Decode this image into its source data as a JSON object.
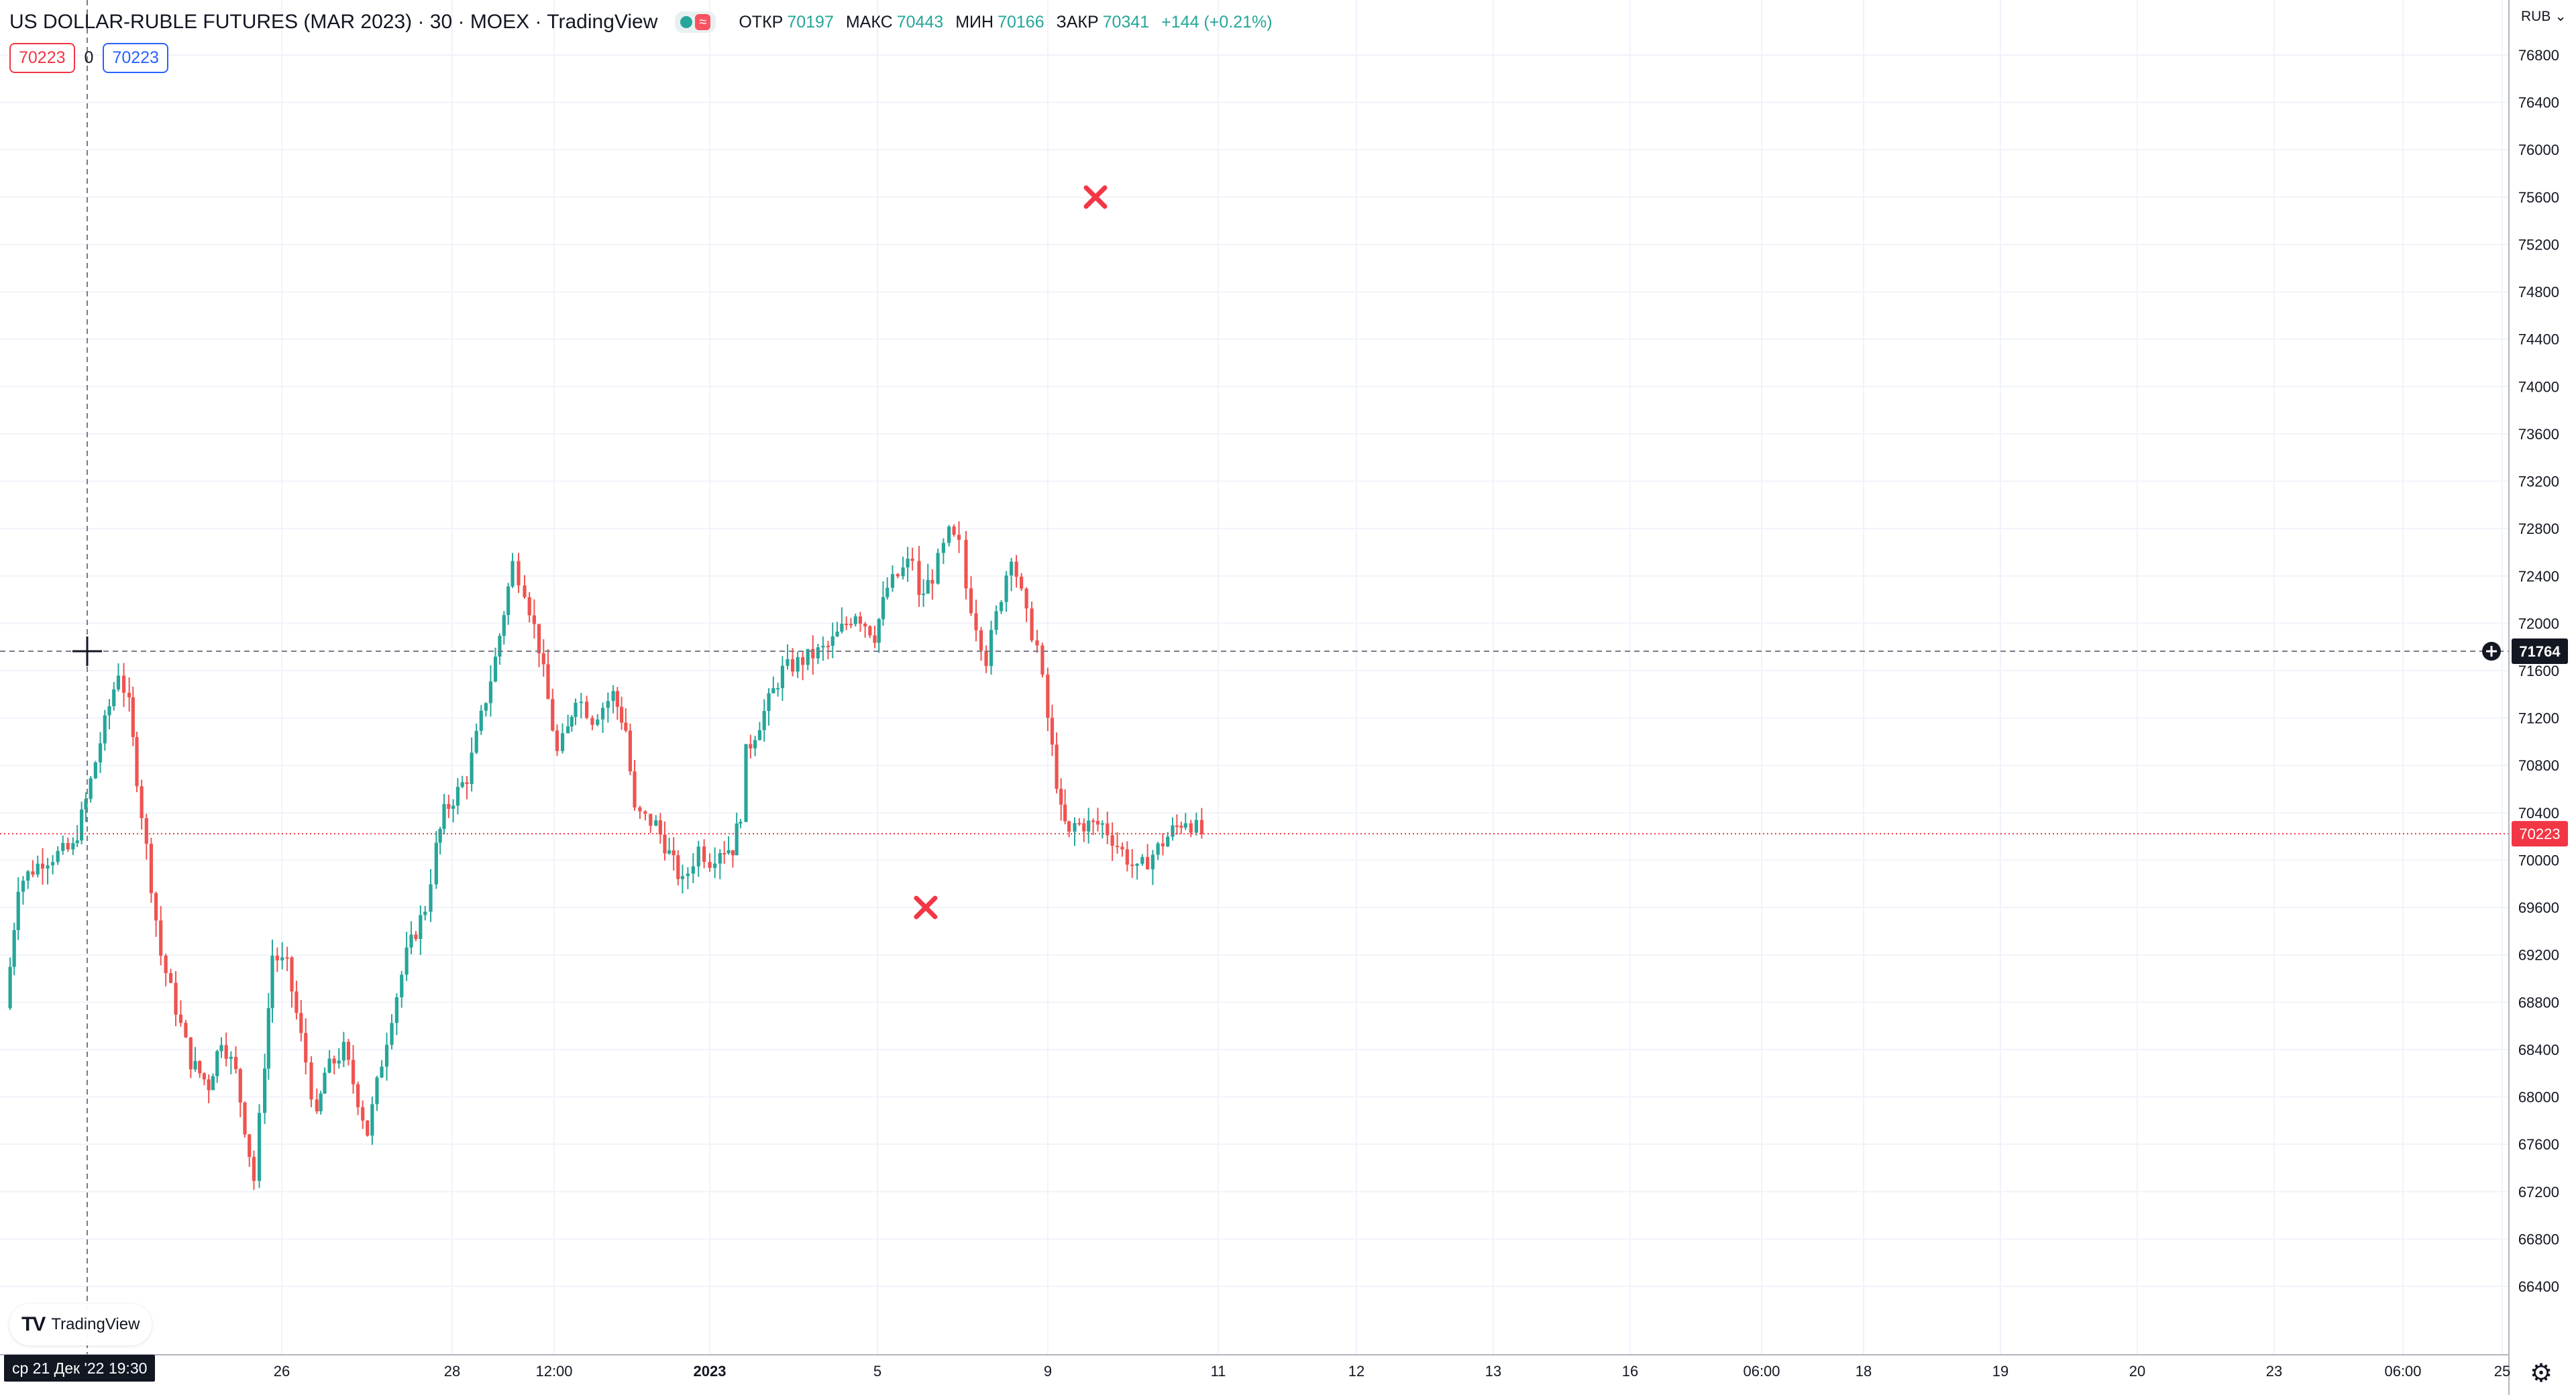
{
  "header": {
    "symbol_title": "US DOLLAR-RUBLE FUTURES (MAR 2023) · 30 · MOEX · TradingView",
    "open_label": "ОТКР",
    "open_value": "70197",
    "high_label": "МАКС",
    "high_value": "70443",
    "low_label": "МИН",
    "low_value": "70166",
    "close_label": "ЗАКР",
    "close_value": "70341",
    "change": "+144 (+0.21%)"
  },
  "badges": {
    "left_value": "70223",
    "spread": "0",
    "right_value": "70223"
  },
  "price_axis": {
    "currency": "RUB",
    "ticks": [
      "76800",
      "76400",
      "76000",
      "75600",
      "75200",
      "74800",
      "74400",
      "74000",
      "73600",
      "73200",
      "72800",
      "72400",
      "72000",
      "71600",
      "71200",
      "70800",
      "70400",
      "70000",
      "69600",
      "69200",
      "68800",
      "68400",
      "68000",
      "67600",
      "67200",
      "66800",
      "66400"
    ],
    "cursor_price": "71764",
    "last_price": "70223"
  },
  "time_axis": {
    "ticks": [
      "26",
      "28",
      "12:00",
      "2023",
      "5",
      "9",
      "11",
      "12",
      "13",
      "16",
      "06:00",
      "18",
      "19",
      "20",
      "23",
      "06:00",
      "25"
    ],
    "cursor_label": "ср 21 Дек '22   19:30"
  },
  "branding": {
    "logo_text": "TradingView"
  },
  "icons": {
    "settings": "gear-icon",
    "crosshair": "crosshair-icon",
    "add_alert": "plus-circle-icon",
    "marker": "x-marker-icon",
    "logo": "tradingview-logo-icon",
    "status": "market-status-icon"
  },
  "colors": {
    "up": "#26a69a",
    "down": "#ef5350",
    "marker": "#f23645",
    "cursor_bg": "#131722",
    "last_price": "#f23645",
    "grid": "#f0f3fa"
  },
  "chart_data": {
    "type": "candlestick",
    "timeframe_minutes": 30,
    "ylim": [
      66300,
      77000
    ],
    "markers": [
      {
        "label": "x",
        "date": "2023-01-10 12:00",
        "price": 69600
      },
      {
        "label": "x",
        "date": "2023-01-13 13:00",
        "price": 75600
      }
    ],
    "price_path": [
      {
        "date": "2022-12-21 11:00",
        "price": 68750
      },
      {
        "date": "2022-12-21 13:00",
        "price": 69800
      },
      {
        "date": "2022-12-21 17:00",
        "price": 70000
      },
      {
        "date": "2022-12-21 22:00",
        "price": 70100
      },
      {
        "date": "2022-12-22 10:00",
        "price": 70500
      },
      {
        "date": "2022-12-22 14:00",
        "price": 71000
      },
      {
        "date": "2022-12-22 19:00",
        "price": 71600
      },
      {
        "date": "2022-12-22 22:00",
        "price": 71300
      },
      {
        "date": "2022-12-23 10:00",
        "price": 70700
      },
      {
        "date": "2022-12-23 14:00",
        "price": 69200
      },
      {
        "date": "2022-12-23 19:00",
        "price": 68300
      },
      {
        "date": "2022-12-23 22:00",
        "price": 68100
      },
      {
        "date": "2022-12-26 10:00",
        "price": 68500
      },
      {
        "date": "2022-12-26 14:00",
        "price": 68200
      },
      {
        "date": "2022-12-26 19:00",
        "price": 67300
      },
      {
        "date": "2022-12-26 22:00",
        "price": 68300
      },
      {
        "date": "2022-12-27 10:00",
        "price": 69200
      },
      {
        "date": "2022-12-27 14:00",
        "price": 69100
      },
      {
        "date": "2022-12-27 19:00",
        "price": 68300
      },
      {
        "date": "2022-12-27 22:00",
        "price": 67800
      },
      {
        "date": "2022-12-28 10:00",
        "price": 68200
      },
      {
        "date": "2022-12-28 14:00",
        "price": 68400
      },
      {
        "date": "2022-12-28 19:00",
        "price": 67700
      },
      {
        "date": "2022-12-28 22:00",
        "price": 68300
      },
      {
        "date": "2022-12-29 10:00",
        "price": 68700
      },
      {
        "date": "2022-12-29 14:00",
        "price": 69200
      },
      {
        "date": "2022-12-29 19:00",
        "price": 69600
      },
      {
        "date": "2022-12-29 22:00",
        "price": 70100
      },
      {
        "date": "2022-12-30 10:00",
        "price": 70400
      },
      {
        "date": "2022-12-30 14:00",
        "price": 70700
      },
      {
        "date": "2022-12-30 19:00",
        "price": 71700
      },
      {
        "date": "2022-12-30 22:00",
        "price": 72500
      },
      {
        "date": "2023-01-02 10:00",
        "price": 72300
      },
      {
        "date": "2023-01-02 14:00",
        "price": 71800
      },
      {
        "date": "2023-01-02 19:00",
        "price": 70900
      },
      {
        "date": "2023-01-02 22:00",
        "price": 71100
      },
      {
        "date": "2023-01-03 10:00",
        "price": 71400
      },
      {
        "date": "2023-01-03 14:00",
        "price": 71200
      },
      {
        "date": "2023-01-03 19:00",
        "price": 71400
      },
      {
        "date": "2023-01-03 22:00",
        "price": 71100
      },
      {
        "date": "2023-01-04 10:00",
        "price": 70400
      },
      {
        "date": "2023-01-04 14:00",
        "price": 70300
      },
      {
        "date": "2023-01-04 19:00",
        "price": 69800
      },
      {
        "date": "2023-01-04 22:00",
        "price": 70100
      },
      {
        "date": "2023-01-05 10:00",
        "price": 70000
      },
      {
        "date": "2023-01-05 14:00",
        "price": 70100
      },
      {
        "date": "2023-01-05 19:00",
        "price": 70100
      },
      {
        "date": "2023-01-05 22:00",
        "price": 70400
      },
      {
        "date": "2023-01-06 10:00",
        "price": 70900
      },
      {
        "date": "2023-01-06 14:00",
        "price": 71600
      },
      {
        "date": "2023-01-06 19:00",
        "price": 71800
      },
      {
        "date": "2023-01-06 22:00",
        "price": 72100
      },
      {
        "date": "2023-01-09 10:00",
        "price": 71900
      },
      {
        "date": "2023-01-09 14:00",
        "price": 72300
      },
      {
        "date": "2023-01-09 19:00",
        "price": 72450
      },
      {
        "date": "2023-01-09 22:00",
        "price": 72550
      },
      {
        "date": "2023-01-10 10:00",
        "price": 72200
      },
      {
        "date": "2023-01-10 14:00",
        "price": 72400
      },
      {
        "date": "2023-01-10 19:00",
        "price": 72750
      },
      {
        "date": "2023-01-10 22:00",
        "price": 72650
      },
      {
        "date": "2023-01-11 10:00",
        "price": 72300
      },
      {
        "date": "2023-01-11 14:00",
        "price": 71700
      },
      {
        "date": "2023-01-11 19:00",
        "price": 72600
      },
      {
        "date": "2023-01-11 22:00",
        "price": 72050
      },
      {
        "date": "2023-01-12 10:00",
        "price": 71800
      },
      {
        "date": "2023-01-12 14:00",
        "price": 71200
      },
      {
        "date": "2023-01-12 19:00",
        "price": 70400
      },
      {
        "date": "2023-01-12 22:00",
        "price": 70200
      },
      {
        "date": "2023-01-13 10:00",
        "price": 70300
      },
      {
        "date": "2023-01-13 14:00",
        "price": 70300
      },
      {
        "date": "2023-01-13 19:00",
        "price": 69900
      },
      {
        "date": "2023-01-13 22:00",
        "price": 70100
      },
      {
        "date": "2023-01-16 10:00",
        "price": 70250
      },
      {
        "date": "2023-01-16 14:00",
        "price": 70350
      },
      {
        "date": "2023-01-16 19:00",
        "price": 70223
      }
    ]
  }
}
